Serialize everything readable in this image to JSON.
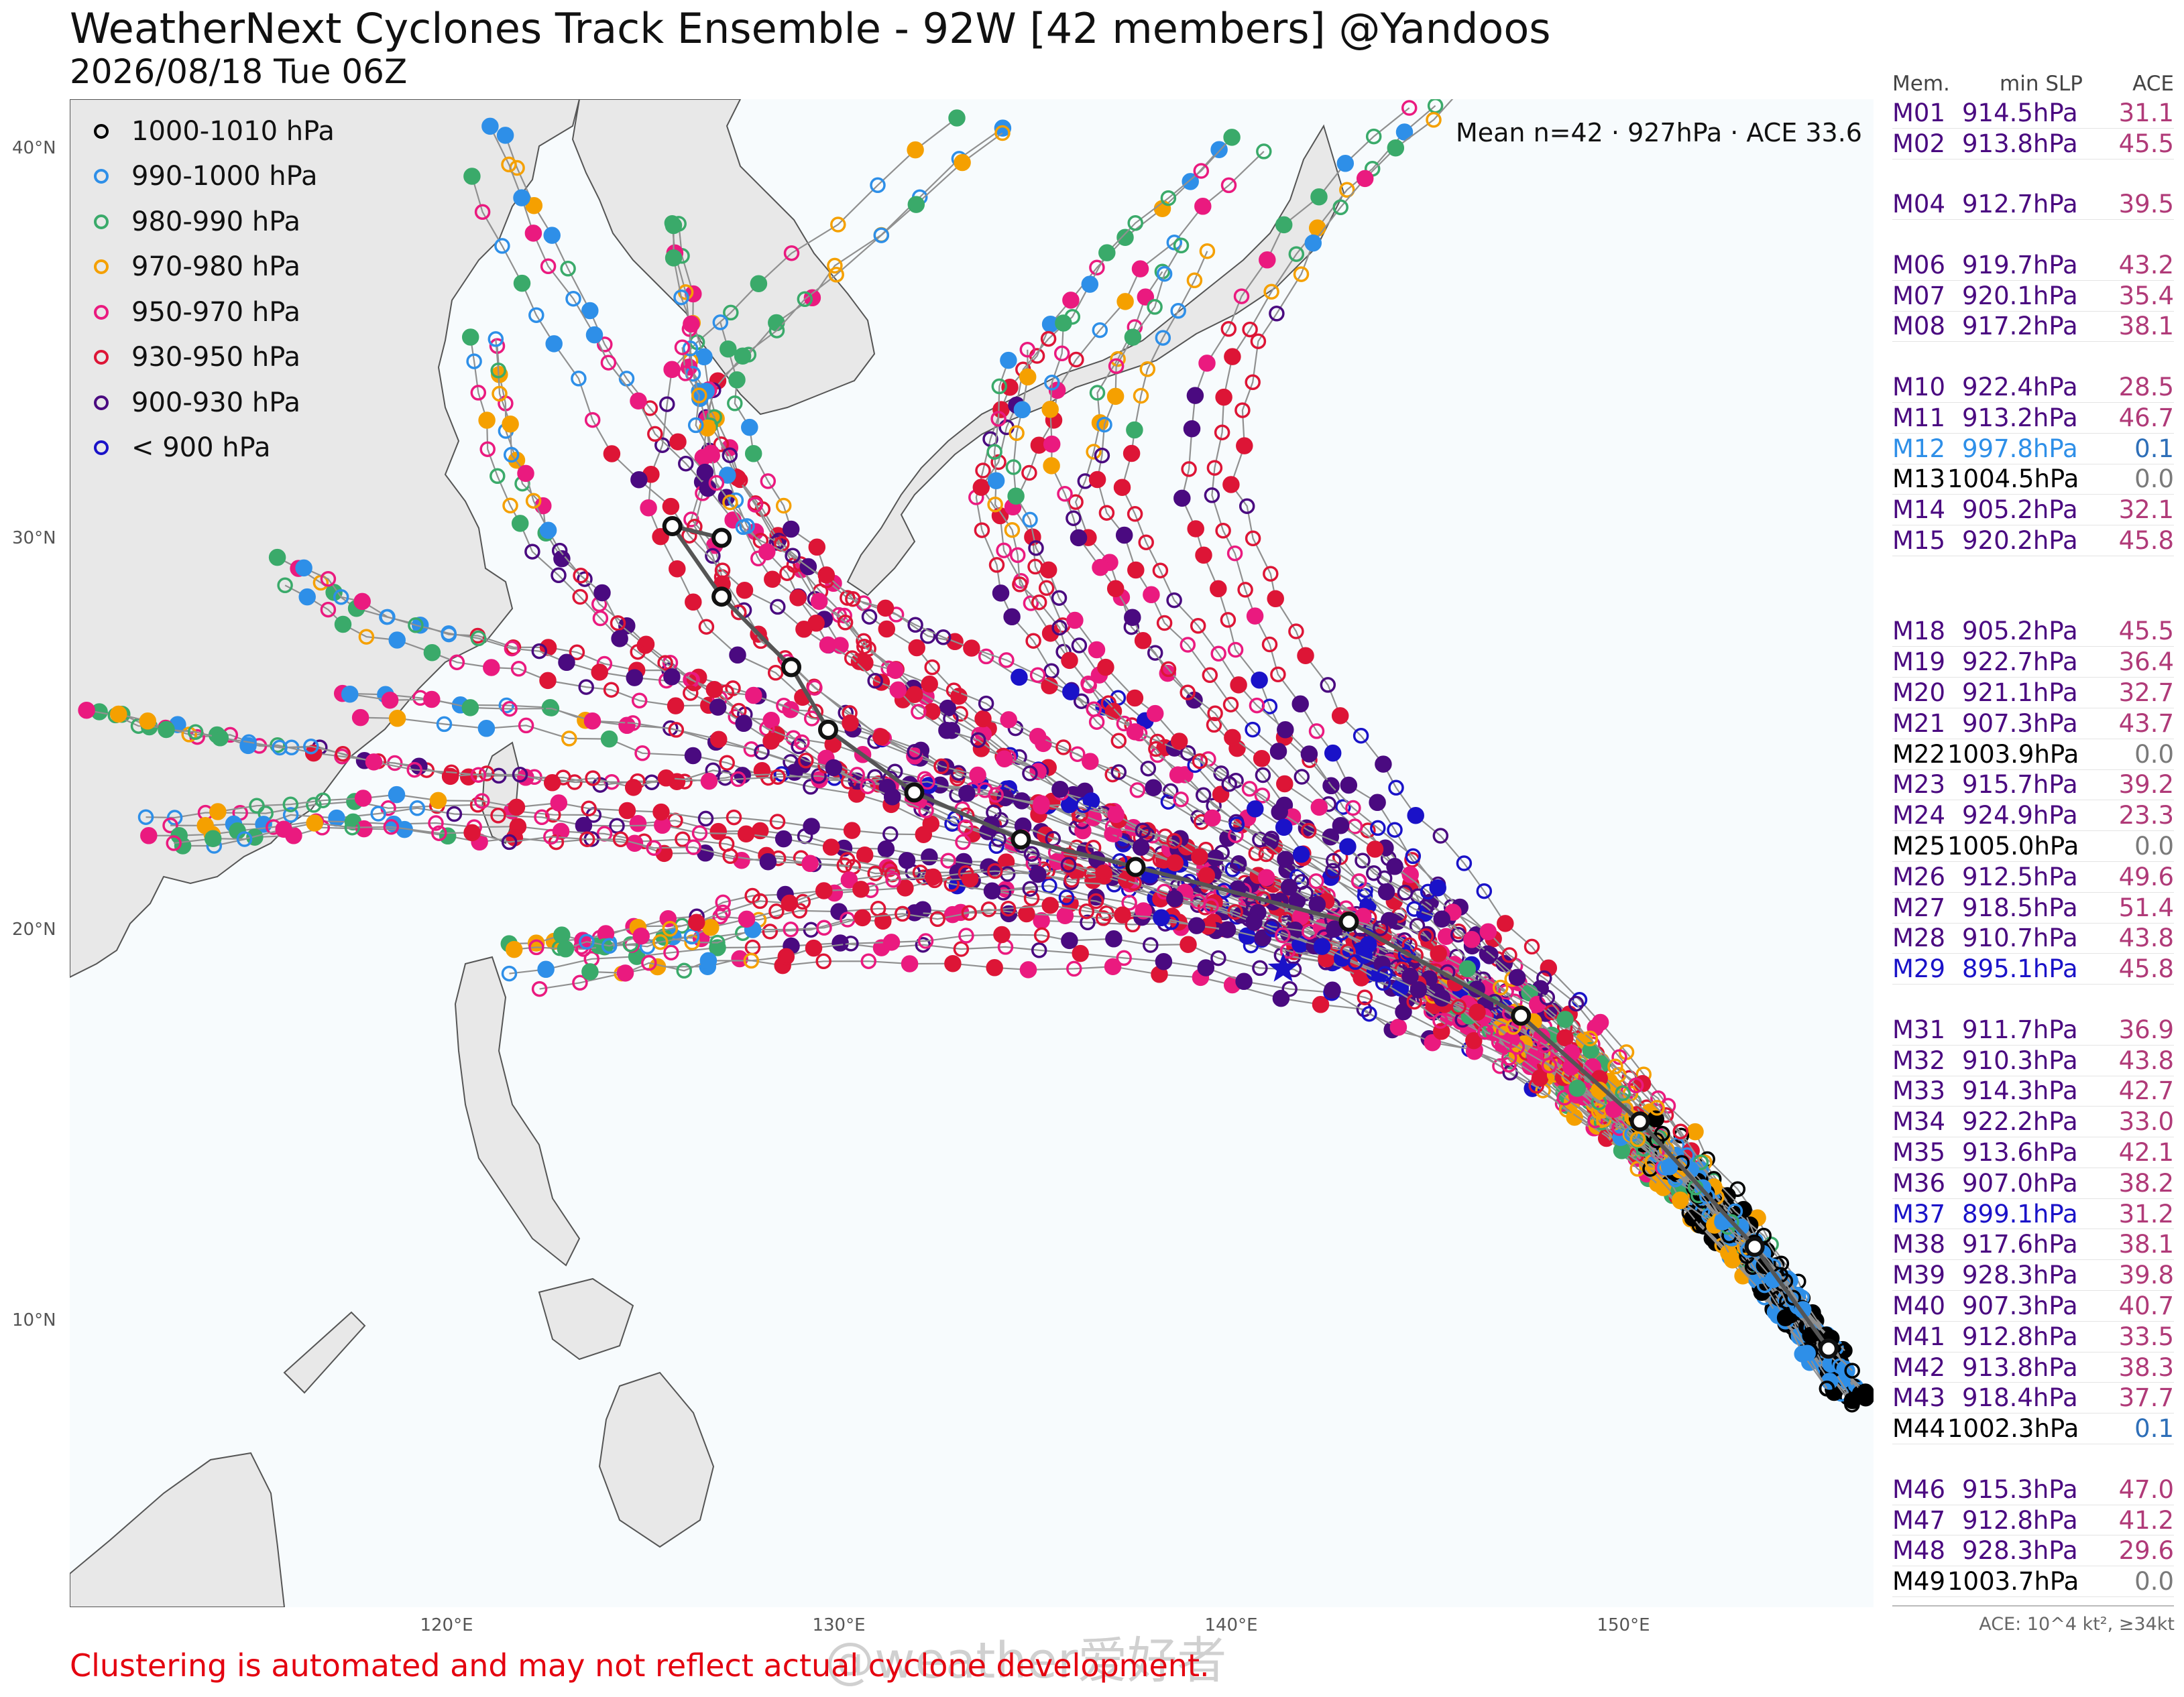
{
  "title": "WeatherNext Cyclones Track Ensemble - 92W [42 members] @Yandoos",
  "subtitle": "2026/08/18 Tue 06Z",
  "mean_label": "Mean n=42 · 927hPa · ACE 33.6",
  "legend": [
    {
      "label": "1000-1010 hPa",
      "color": "#000000"
    },
    {
      "label": "990-1000 hPa",
      "color": "#2e8fe8"
    },
    {
      "label": "980-990 hPa",
      "color": "#3aaa6a"
    },
    {
      "label": "970-980 hPa",
      "color": "#f5a000"
    },
    {
      "label": "950-970 hPa",
      "color": "#ea1a7f"
    },
    {
      "label": "930-950 hPa",
      "color": "#dd1536"
    },
    {
      "label": "900-930 hPa",
      "color": "#4a0a80"
    },
    {
      "label": "< 900 hPa",
      "color": "#1a12c8"
    }
  ],
  "lat_labels": [
    "40°N",
    "30°N",
    "20°N",
    "10°N"
  ],
  "lon_labels": [
    "120°E",
    "130°E",
    "140°E",
    "150°E"
  ],
  "mean_track": [
    {
      "lon": 154.5,
      "lat": 9.4
    },
    {
      "lon": 152.7,
      "lat": 12.0
    },
    {
      "lon": 149.9,
      "lat": 15.2
    },
    {
      "lon": 147.0,
      "lat": 17.9
    },
    {
      "lon": 142.8,
      "lat": 20.3
    },
    {
      "lon": 137.6,
      "lat": 21.7
    },
    {
      "lon": 134.8,
      "lat": 22.4
    },
    {
      "lon": 132.2,
      "lat": 23.6
    },
    {
      "lon": 130.1,
      "lat": 25.2
    },
    {
      "lon": 129.2,
      "lat": 26.8
    },
    {
      "lon": 127.5,
      "lat": 28.6
    },
    {
      "lon": 126.3,
      "lat": 30.4
    },
    {
      "lon": 127.5,
      "lat": 30.1
    }
  ],
  "star_position": {
    "lon": 141.2,
    "lat": 19.1
  },
  "sidebar": {
    "header": {
      "mem": "Mem.",
      "slp": "min SLP",
      "ace": "ACE"
    },
    "rows": [
      {
        "mem": "M01",
        "slp": "914.5hPa",
        "ace": "31.1",
        "color": "#4a0a80"
      },
      {
        "mem": "M02",
        "slp": "913.8hPa",
        "ace": "45.5",
        "color": "#4a0a80"
      },
      {
        "gap": true
      },
      {
        "mem": "M04",
        "slp": "912.7hPa",
        "ace": "39.5",
        "color": "#4a0a80"
      },
      {
        "gap": true
      },
      {
        "mem": "M06",
        "slp": "919.7hPa",
        "ace": "43.2",
        "color": "#4a0a80"
      },
      {
        "mem": "M07",
        "slp": "920.1hPa",
        "ace": "35.4",
        "color": "#4a0a80"
      },
      {
        "mem": "M08",
        "slp": "917.2hPa",
        "ace": "38.1",
        "color": "#4a0a80"
      },
      {
        "gap": true
      },
      {
        "mem": "M10",
        "slp": "922.4hPa",
        "ace": "28.5",
        "color": "#4a0a80"
      },
      {
        "mem": "M11",
        "slp": "913.2hPa",
        "ace": "46.7",
        "color": "#4a0a80"
      },
      {
        "mem": "M12",
        "slp": "997.8hPa",
        "ace": "0.1",
        "color": "#2e8fe8"
      },
      {
        "mem": "M13",
        "slp": "1004.5hPa",
        "ace": "0.0",
        "color": "#000000"
      },
      {
        "mem": "M14",
        "slp": "905.2hPa",
        "ace": "32.1",
        "color": "#4a0a80"
      },
      {
        "mem": "M15",
        "slp": "920.2hPa",
        "ace": "45.8",
        "color": "#4a0a80"
      },
      {
        "gap": true
      },
      {
        "gap": true
      },
      {
        "mem": "M18",
        "slp": "905.2hPa",
        "ace": "45.5",
        "color": "#4a0a80"
      },
      {
        "mem": "M19",
        "slp": "922.7hPa",
        "ace": "36.4",
        "color": "#4a0a80"
      },
      {
        "mem": "M20",
        "slp": "921.1hPa",
        "ace": "32.7",
        "color": "#4a0a80"
      },
      {
        "mem": "M21",
        "slp": "907.3hPa",
        "ace": "43.7",
        "color": "#4a0a80"
      },
      {
        "mem": "M22",
        "slp": "1003.9hPa",
        "ace": "0.0",
        "color": "#000000"
      },
      {
        "mem": "M23",
        "slp": "915.7hPa",
        "ace": "39.2",
        "color": "#4a0a80"
      },
      {
        "mem": "M24",
        "slp": "924.9hPa",
        "ace": "23.3",
        "color": "#4a0a80"
      },
      {
        "mem": "M25",
        "slp": "1005.0hPa",
        "ace": "0.0",
        "color": "#000000"
      },
      {
        "mem": "M26",
        "slp": "912.5hPa",
        "ace": "49.6",
        "color": "#4a0a80"
      },
      {
        "mem": "M27",
        "slp": "918.5hPa",
        "ace": "51.4",
        "color": "#4a0a80"
      },
      {
        "mem": "M28",
        "slp": "910.7hPa",
        "ace": "43.8",
        "color": "#4a0a80"
      },
      {
        "mem": "M29",
        "slp": "895.1hPa",
        "ace": "45.8",
        "color": "#1a12c8"
      },
      {
        "gap": true
      },
      {
        "mem": "M31",
        "slp": "911.7hPa",
        "ace": "36.9",
        "color": "#4a0a80"
      },
      {
        "mem": "M32",
        "slp": "910.3hPa",
        "ace": "43.8",
        "color": "#4a0a80"
      },
      {
        "mem": "M33",
        "slp": "914.3hPa",
        "ace": "42.7",
        "color": "#4a0a80"
      },
      {
        "mem": "M34",
        "slp": "922.2hPa",
        "ace": "33.0",
        "color": "#4a0a80"
      },
      {
        "mem": "M35",
        "slp": "913.6hPa",
        "ace": "42.1",
        "color": "#4a0a80"
      },
      {
        "mem": "M36",
        "slp": "907.0hPa",
        "ace": "38.2",
        "color": "#4a0a80"
      },
      {
        "mem": "M37",
        "slp": "899.1hPa",
        "ace": "31.2",
        "color": "#1a12c8"
      },
      {
        "mem": "M38",
        "slp": "917.6hPa",
        "ace": "38.1",
        "color": "#4a0a80"
      },
      {
        "mem": "M39",
        "slp": "928.3hPa",
        "ace": "39.8",
        "color": "#4a0a80"
      },
      {
        "mem": "M40",
        "slp": "907.3hPa",
        "ace": "40.7",
        "color": "#4a0a80"
      },
      {
        "mem": "M41",
        "slp": "912.8hPa",
        "ace": "33.5",
        "color": "#4a0a80"
      },
      {
        "mem": "M42",
        "slp": "913.8hPa",
        "ace": "38.3",
        "color": "#4a0a80"
      },
      {
        "mem": "M43",
        "slp": "918.4hPa",
        "ace": "37.7",
        "color": "#4a0a80"
      },
      {
        "mem": "M44",
        "slp": "1002.3hPa",
        "ace": "0.1",
        "color": "#000000"
      },
      {
        "gap": true
      },
      {
        "mem": "M46",
        "slp": "915.3hPa",
        "ace": "47.0",
        "color": "#4a0a80"
      },
      {
        "mem": "M47",
        "slp": "912.8hPa",
        "ace": "41.2",
        "color": "#4a0a80"
      },
      {
        "mem": "M48",
        "slp": "928.3hPa",
        "ace": "29.6",
        "color": "#4a0a80"
      },
      {
        "mem": "M49",
        "slp": "1003.7hPa",
        "ace": "0.0",
        "color": "#000000"
      }
    ]
  },
  "ace_note": "ACE: 10^4 kt², ≥34kt",
  "disclaimer": "Clustering is automated and may not reflect actual cyclone development.",
  "watermark": "@weather爱好者",
  "colors": {
    "ocean": "#f7fbfd",
    "land": "#e8e8e8",
    "coast": "#555555",
    "track": "#909090",
    "mean_track": "#555555",
    "ace_high": "#b03a78",
    "ace_zero": "#7a7a7a",
    "disclaimer": "#e4000f"
  }
}
